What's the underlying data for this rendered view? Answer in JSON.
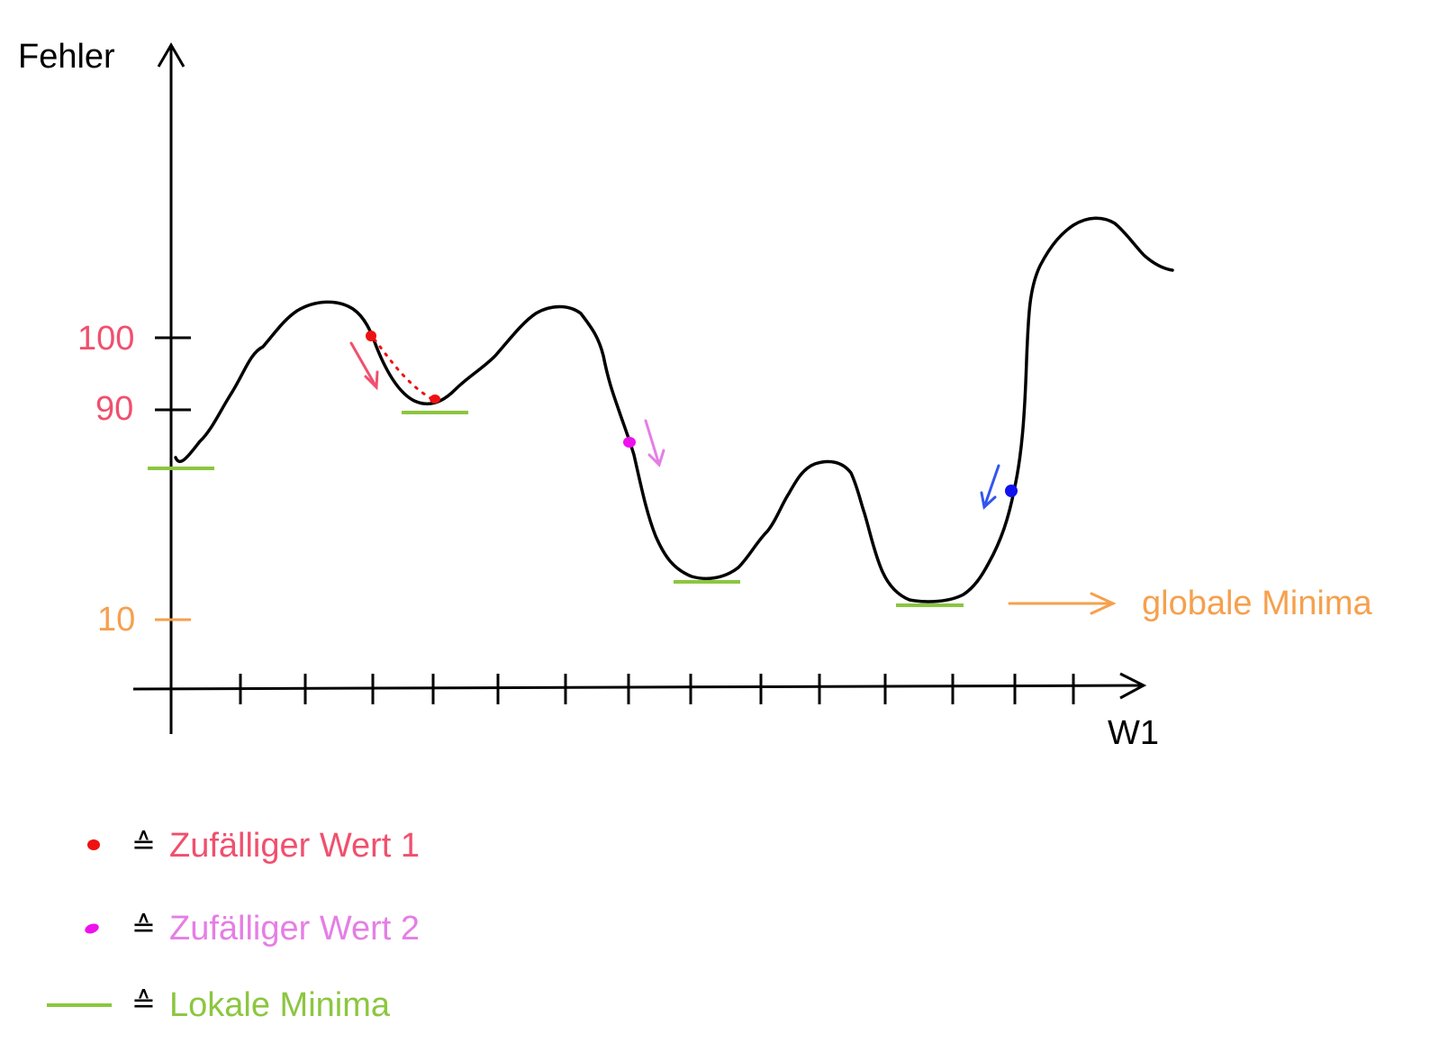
{
  "axes": {
    "y_label": "Fehler",
    "x_label": "W1",
    "y_ticks": [
      {
        "label": "100",
        "color": "#f0506e"
      },
      {
        "label": "90",
        "color": "#f0506e"
      },
      {
        "label": "10",
        "color": "#f6a04d"
      }
    ],
    "x_tick_count": 15
  },
  "annotations": {
    "global_minima": "globale Minima",
    "global_minima_color": "#f6a04d"
  },
  "legend": {
    "items": [
      {
        "symbol": "≙",
        "text": "Zufälliger Wert 1",
        "color": "#f0506e",
        "marker_color": "#ee1111"
      },
      {
        "symbol": "≙",
        "text": "Zufälliger Wert 2",
        "color": "#e57ee5",
        "marker_color": "#ee11ee"
      },
      {
        "symbol": "≙",
        "text": "Lokale Minima",
        "color": "#8cc63f",
        "marker_color": "#8cc63f"
      }
    ]
  },
  "colors": {
    "curve": "#000000",
    "axis": "#000000",
    "minima": "#8cc63f",
    "point1": "#ee1111",
    "arrow1": "#f0506e",
    "point2": "#ee11ee",
    "arrow2": "#e57ee5",
    "point3": "#1111ee",
    "arrow3": "#3355ee"
  }
}
